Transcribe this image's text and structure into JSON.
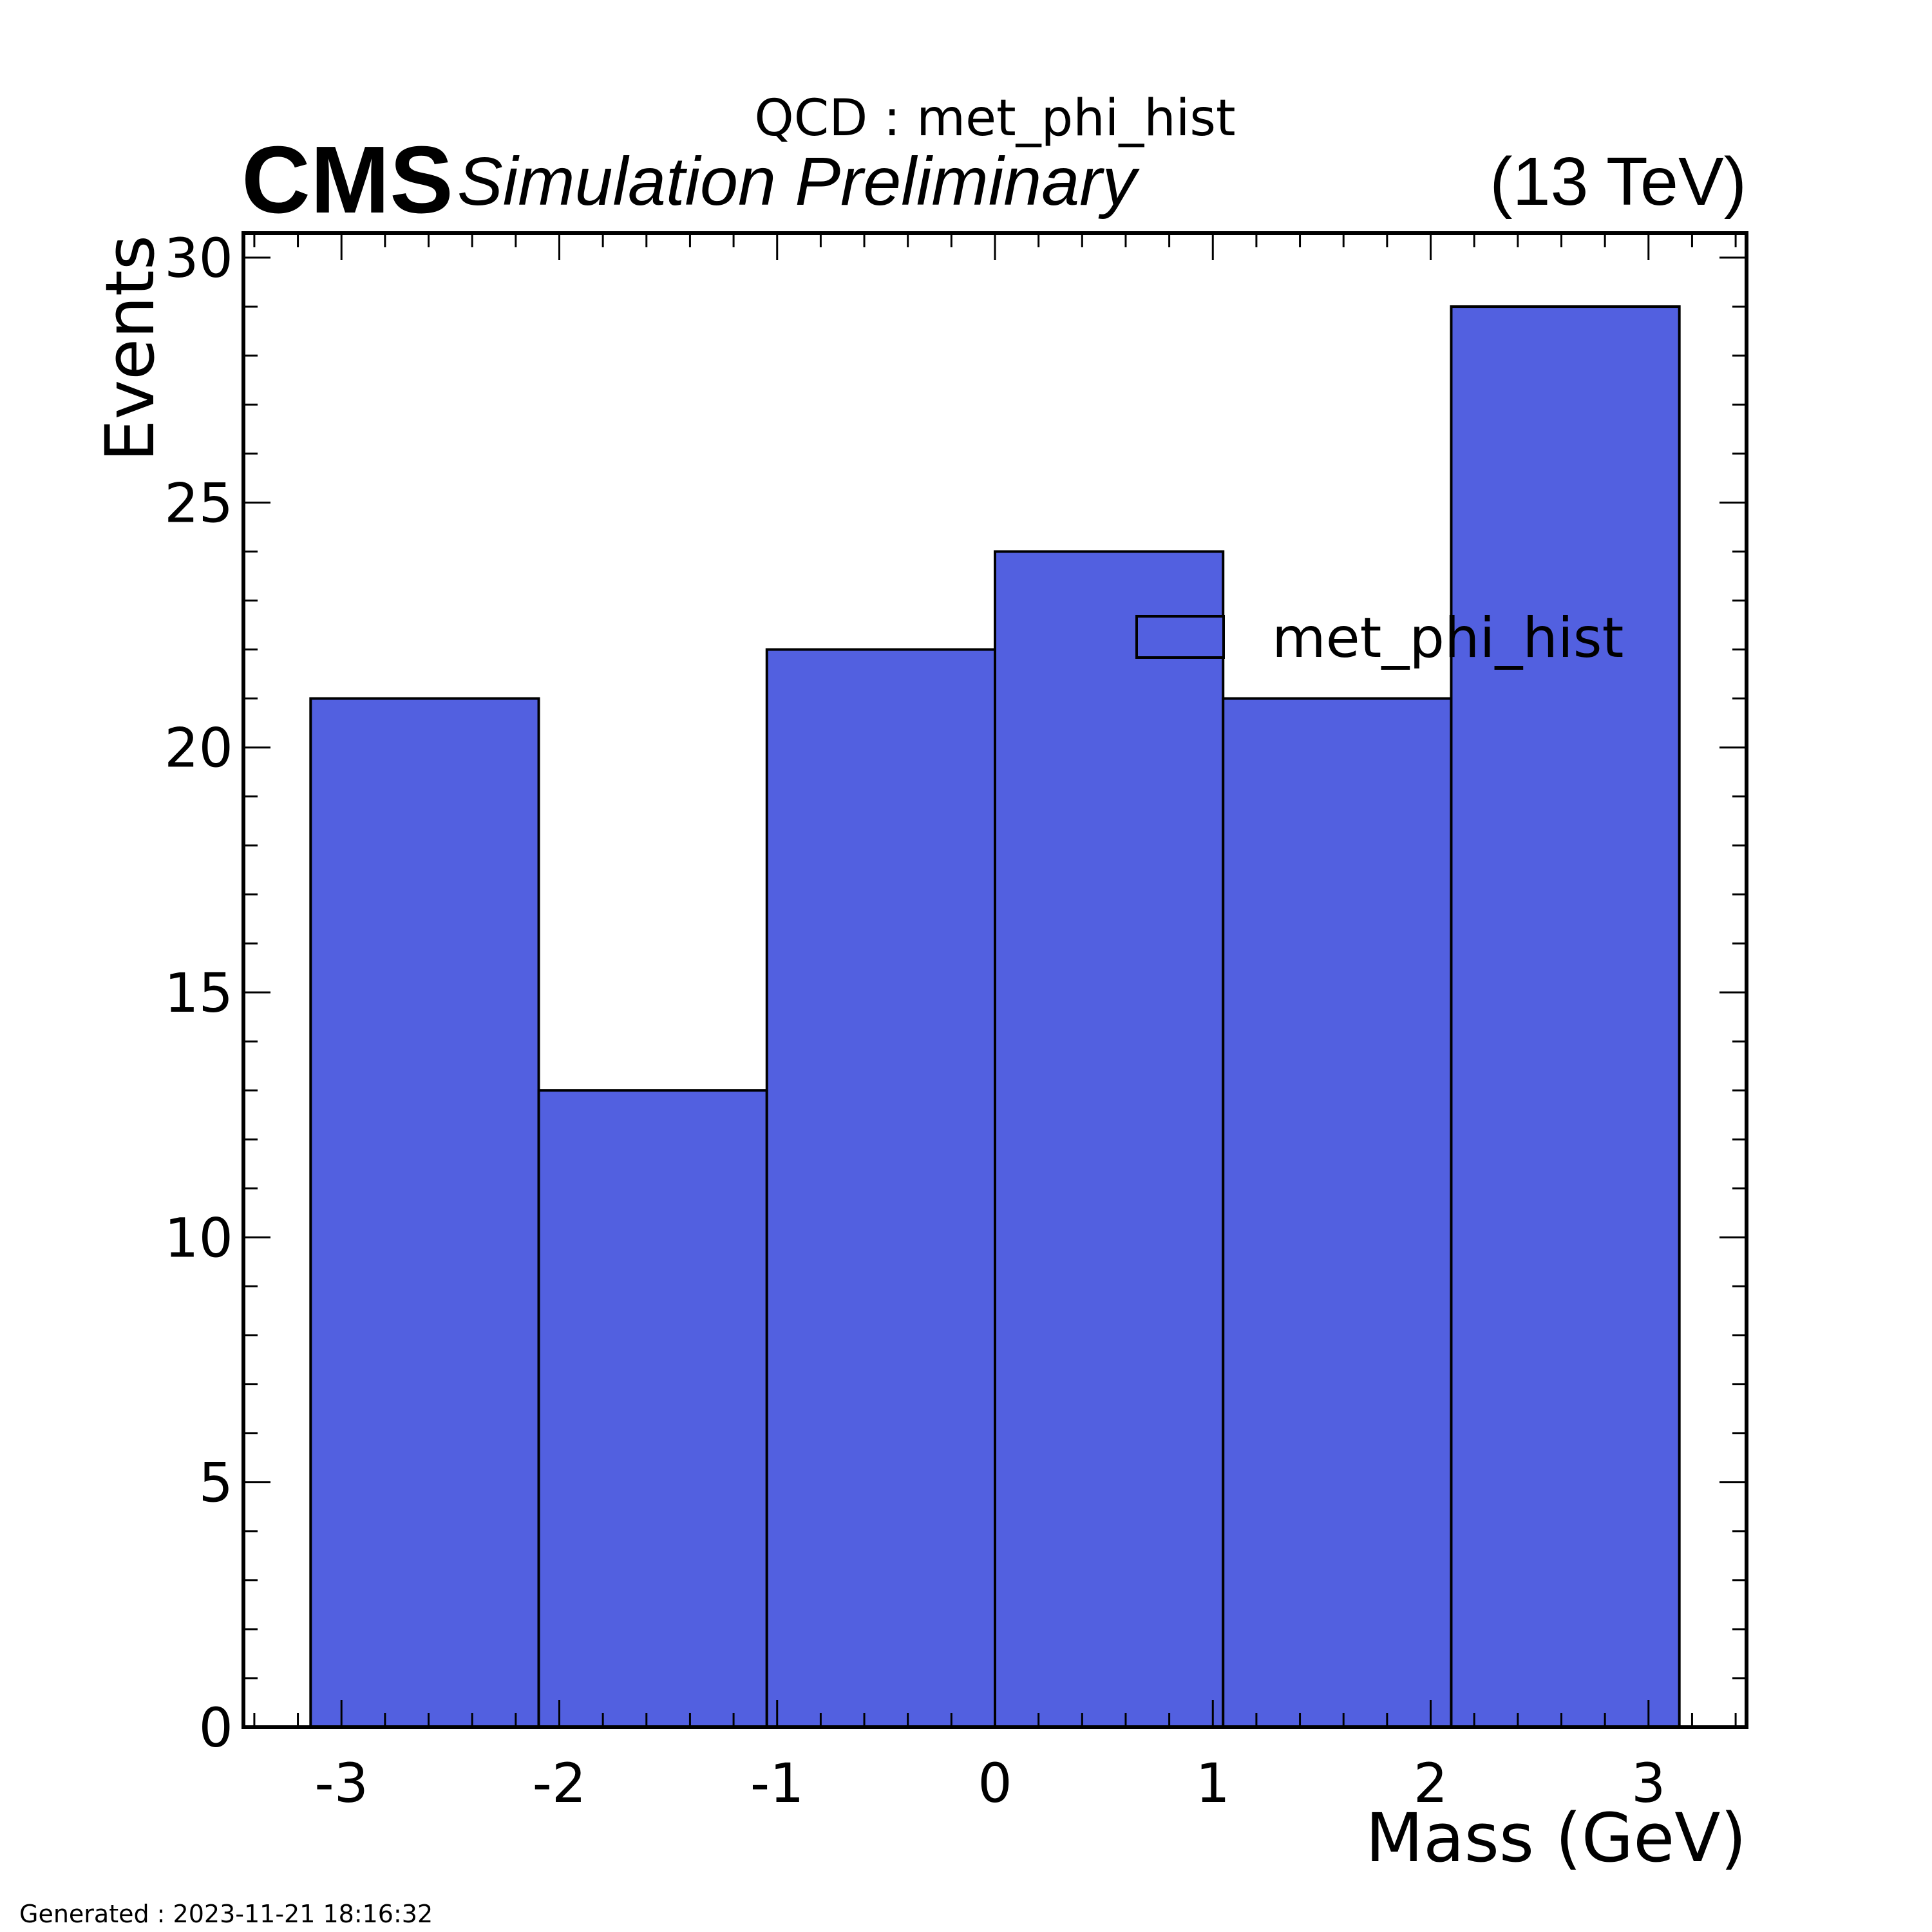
{
  "header": {
    "plot_title": "QCD : met_phi_hist",
    "experiment": "CMS",
    "status": "Simulation Preliminary",
    "energy": "(13 TeV)"
  },
  "footer": {
    "generated": "Generated : 2023-11-21 18:16:32"
  },
  "colors": {
    "fill": "#5260e0",
    "edge": "#000000"
  },
  "chart_data": {
    "type": "bar",
    "histogram": true,
    "xlabel": "Mass (GeV)",
    "ylabel": "Events",
    "xlim": [
      -3.45,
      3.45
    ],
    "ylim": [
      0,
      30.5
    ],
    "bin_edges": [
      -3.1416,
      -2.0944,
      -1.0472,
      0.0,
      1.0472,
      2.0944,
      3.1416
    ],
    "series": [
      {
        "name": "met_phi_hist",
        "values": [
          21,
          13,
          22,
          24,
          21,
          29
        ]
      }
    ],
    "x_ticks": [
      -3,
      -2,
      -1,
      0,
      1,
      2,
      3
    ],
    "x_tick_labels": [
      "-3",
      "-2",
      "-1",
      "0",
      "1",
      "2",
      "3"
    ],
    "y_ticks": [
      0,
      5,
      10,
      15,
      20,
      25,
      30
    ],
    "y_tick_labels": [
      "0",
      "5",
      "10",
      "15",
      "20",
      "25",
      "30"
    ],
    "legend": "upper-right",
    "grid": false
  }
}
